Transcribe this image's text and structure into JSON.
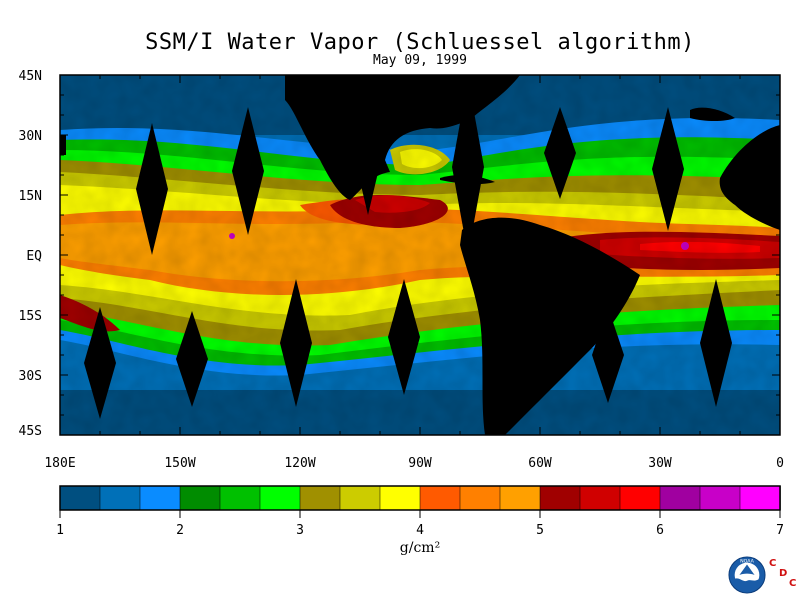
{
  "title": "SSM/I Water Vapor (Schluessel algorithm)",
  "date": "May 09, 1999",
  "lat_labels": [
    "45N",
    "30N",
    "15N",
    "EQ",
    "15S",
    "30S",
    "45S"
  ],
  "lon_labels": [
    "180E",
    "150W",
    "120W",
    "90W",
    "60W",
    "30W",
    "0"
  ],
  "colorbar": {
    "ticks": [
      "1",
      "2",
      "3",
      "4",
      "5",
      "6",
      "7"
    ],
    "units": "g/cm²",
    "colors": [
      "#004f80",
      "#0070b8",
      "#0a8cff",
      "#008c00",
      "#00c000",
      "#00ff00",
      "#a09000",
      "#cccc00",
      "#ffff00",
      "#ff5a00",
      "#ff8000",
      "#ffa000",
      "#a00000",
      "#d00000",
      "#ff0000",
      "#a000a0",
      "#c800c8",
      "#ff00ff"
    ]
  },
  "map_extent": {
    "lon_min": -180,
    "lon_max": 0,
    "lat_min": -45,
    "lat_max": 45
  },
  "swath_gaps": [
    {
      "lon": -157,
      "lat_top": 33,
      "lat_bot": 0
    },
    {
      "lon": -133,
      "lat_top": 37,
      "lat_bot": 5
    },
    {
      "lon": -103,
      "lat_top": 44,
      "lat_bot": 10
    },
    {
      "lon": -78,
      "lat_top": 44,
      "lat_bot": 0
    },
    {
      "lon": -55,
      "lat_top": 37,
      "lat_bot": 14
    },
    {
      "lon": -28,
      "lat_top": 37,
      "lat_bot": 6
    },
    {
      "lon": -170,
      "lat_top": -13,
      "lat_bot": -41
    },
    {
      "lon": -147,
      "lat_top": -14,
      "lat_bot": -38
    },
    {
      "lon": -121,
      "lat_top": -6,
      "lat_bot": -38
    },
    {
      "lon": -94,
      "lat_top": -6,
      "lat_bot": -35
    },
    {
      "lon": -43,
      "lat_top": -13,
      "lat_bot": -37
    },
    {
      "lon": -16,
      "lat_top": -6,
      "lat_bot": -38
    }
  ],
  "logo": {
    "name": "NOAA",
    "org": [
      "C",
      "D",
      "C"
    ]
  }
}
